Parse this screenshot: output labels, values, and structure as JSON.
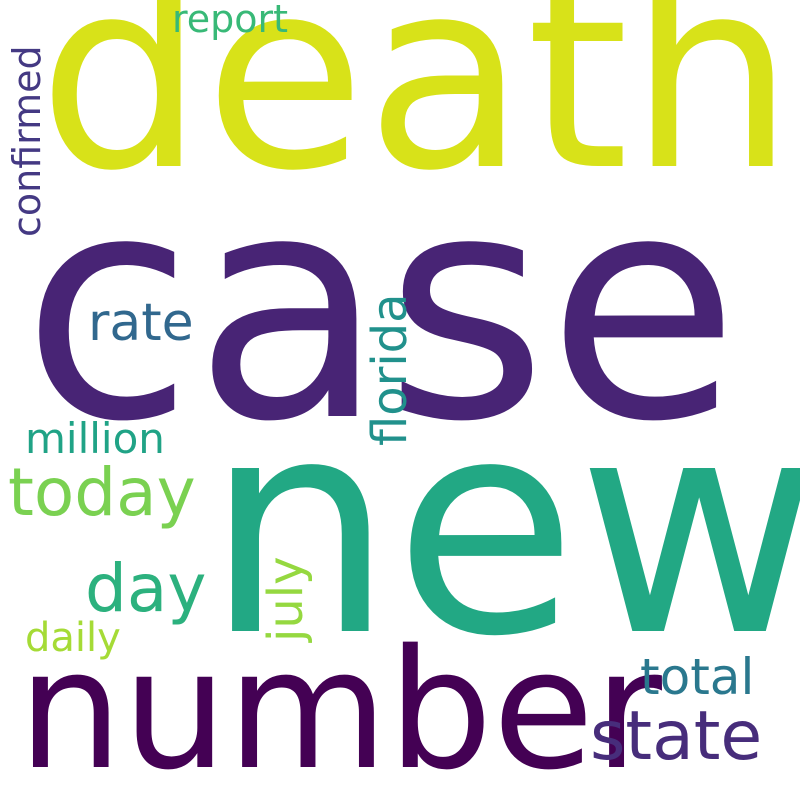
{
  "words": [
    {
      "text": "death",
      "color": "#d8e219"
    },
    {
      "text": "case",
      "color": "#482475"
    },
    {
      "text": "new",
      "color": "#22a884"
    },
    {
      "text": "number",
      "color": "#440154"
    },
    {
      "text": "state",
      "color": "#472d7b"
    },
    {
      "text": "today",
      "color": "#7ad151"
    },
    {
      "text": "day",
      "color": "#2cb17e"
    },
    {
      "text": "rate",
      "color": "#31688e"
    },
    {
      "text": "florida",
      "color": "#21918c"
    },
    {
      "text": "million",
      "color": "#20a386"
    },
    {
      "text": "july",
      "color": "#95d840"
    },
    {
      "text": "daily",
      "color": "#a5db36"
    },
    {
      "text": "total",
      "color": "#2a788e"
    },
    {
      "text": "report",
      "color": "#38b977"
    },
    {
      "text": "confirmed",
      "color": "#443983"
    }
  ]
}
